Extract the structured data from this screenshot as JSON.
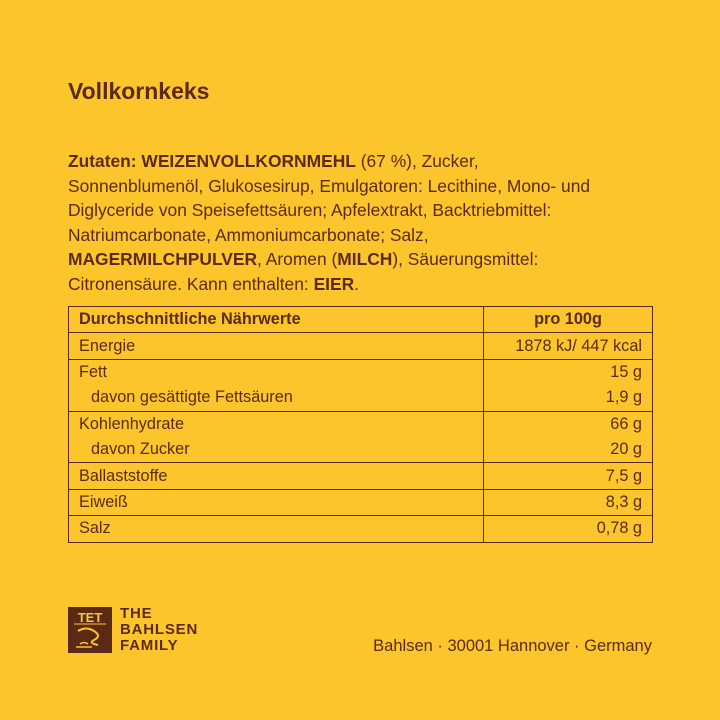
{
  "title": "Vollkornkeks",
  "ingredients": {
    "lines": [
      [
        {
          "t": "Zutaten: WEIZENVOLLKORNMEHL",
          "b": true
        },
        {
          "t": " (67 %), Zucker,",
          "b": false
        }
      ],
      [
        {
          "t": "Sonnenblumenöl, Glukosesirup, Emulgatoren: Lecithine, Mono- und",
          "b": false
        }
      ],
      [
        {
          "t": "Diglyceride von Speisefettsäuren; Apfelextrakt, Backtriebmittel:",
          "b": false
        }
      ],
      [
        {
          "t": "Natriumcarbonate, Ammoniumcarbonate; Salz,",
          "b": false
        }
      ],
      [
        {
          "t": "MAGERMILCHPULVER",
          "b": true
        },
        {
          "t": ", Aromen (",
          "b": false
        },
        {
          "t": "MILCH",
          "b": true
        },
        {
          "t": "), Säuerungsmittel:",
          "b": false
        }
      ],
      [
        {
          "t": "Citronensäure. Kann enthalten: ",
          "b": false
        },
        {
          "t": "EIER",
          "b": true
        },
        {
          "t": ".",
          "b": false
        }
      ]
    ]
  },
  "nutrition": {
    "header": {
      "label": "Durchschnittliche Nährwerte",
      "value": "pro 100g"
    },
    "rows": [
      {
        "label": "Energie",
        "value": "1878 kJ/ 447 kcal",
        "sub": false,
        "top": true
      },
      {
        "label": "Fett",
        "value": "15 g",
        "sub": false,
        "top": true
      },
      {
        "label": "davon gesättigte Fettsäuren",
        "value": "1,9 g",
        "sub": true,
        "top": false
      },
      {
        "label": "Kohlenhydrate",
        "value": "66 g",
        "sub": false,
        "top": true
      },
      {
        "label": "davon Zucker",
        "value": "20 g",
        "sub": true,
        "top": false
      },
      {
        "label": "Ballaststoffe",
        "value": "7,5 g",
        "sub": false,
        "top": true
      },
      {
        "label": "Eiweiß",
        "value": "8,3 g",
        "sub": false,
        "top": true
      },
      {
        "label": "Salz",
        "value": "0,78 g",
        "sub": false,
        "top": true
      }
    ]
  },
  "footer": {
    "logo_text": "TET",
    "brand_lines": [
      "THE",
      "BAHLSEN",
      "FAMILY"
    ],
    "address": "Bahlsen · 30001 Hannover · Germany"
  },
  "colors": {
    "background": "#FDC52C",
    "text": "#5a2a17"
  }
}
